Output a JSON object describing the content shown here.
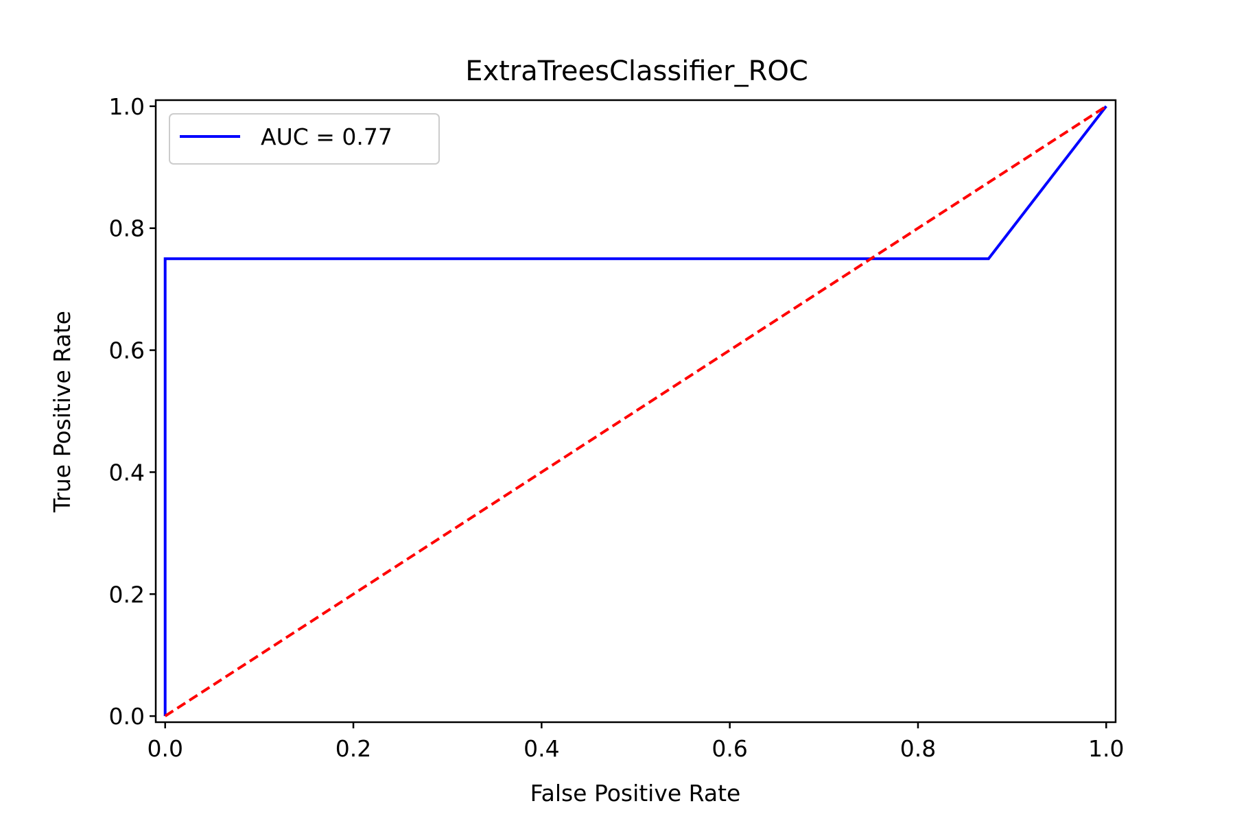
{
  "chart_data": {
    "type": "line",
    "title": "ExtraTreesClassifier_ROC",
    "xlabel": "False Positive Rate",
    "ylabel": "True Positive Rate",
    "xlim": [
      -0.01,
      1.01
    ],
    "ylim": [
      -0.01,
      1.01
    ],
    "xticks": [
      0.0,
      0.2,
      0.4,
      0.6,
      0.8,
      1.0
    ],
    "yticks": [
      0.0,
      0.2,
      0.4,
      0.6,
      0.8,
      1.0
    ],
    "xtick_labels": [
      "0.0",
      "0.2",
      "0.4",
      "0.6",
      "0.8",
      "1.0"
    ],
    "ytick_labels": [
      "0.0",
      "0.2",
      "0.4",
      "0.6",
      "0.8",
      "1.0"
    ],
    "grid": false,
    "legend_position": "upper left",
    "series": [
      {
        "name": "AUC = 0.77",
        "color": "#0000ff",
        "style": "solid",
        "x": [
          0.0,
          0.0,
          0.875,
          1.0
        ],
        "y": [
          0.0,
          0.75,
          0.75,
          1.0
        ]
      },
      {
        "color": "#ff0000",
        "style": "dashed",
        "x": [
          0.0,
          1.0
        ],
        "y": [
          0.0,
          1.0
        ]
      }
    ]
  }
}
